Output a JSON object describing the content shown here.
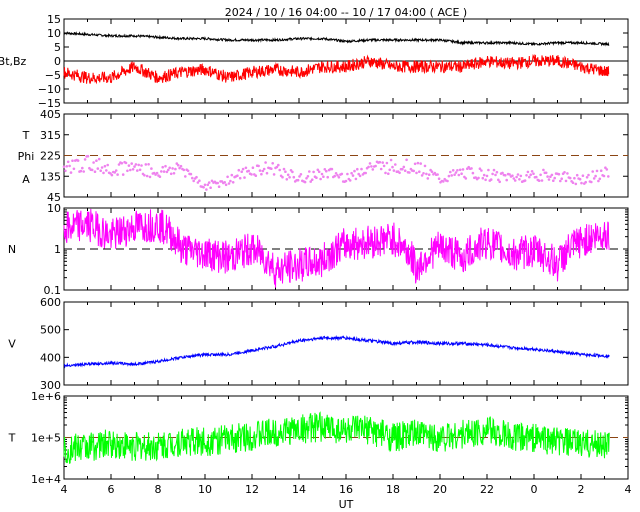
{
  "title": "2024 / 10 / 16   04:00 -- 10 / 17   04:00 ( ACE )",
  "x_axis": {
    "label": "UT",
    "ticks": [
      "4",
      "6",
      "8",
      "10",
      "12",
      "14",
      "16",
      "18",
      "20",
      "22",
      "0",
      "2",
      "4"
    ]
  },
  "chart_data": [
    {
      "type": "line",
      "panel": "magnetic-field",
      "ylabel": "Bt,Bz",
      "yticks": [
        "15",
        "10",
        "5",
        "0",
        "−5",
        "−10",
        "−15"
      ],
      "ylim": [
        -15,
        15
      ],
      "reference_line": 0,
      "x": [
        4,
        5,
        6,
        7,
        8,
        9,
        10,
        11,
        12,
        13,
        14,
        15,
        16,
        17,
        18,
        19,
        20,
        21,
        22,
        23,
        24,
        25,
        26,
        27.2
      ],
      "series": [
        {
          "name": "Bt",
          "color": "#000000",
          "values": [
            10,
            9.5,
            9,
            9,
            8.5,
            8,
            8,
            7.5,
            7.5,
            7.5,
            8,
            8,
            7,
            7.5,
            7.5,
            7.5,
            7.5,
            6.5,
            6.5,
            6.5,
            6,
            6.5,
            6.5,
            6
          ]
        },
        {
          "name": "Bz",
          "color": "#ff0000",
          "values": [
            -4,
            -6,
            -6,
            -2,
            -6,
            -4,
            -3,
            -6,
            -4,
            -3,
            -4,
            -2,
            -2,
            0,
            -2,
            -2,
            -2,
            -2,
            0,
            -1,
            0,
            0,
            -2,
            -4
          ]
        }
      ]
    },
    {
      "type": "scatter",
      "panel": "field-angle",
      "ylabel_top": "T",
      "ylabel_mid": "Phi",
      "ylabel_bottom": "A",
      "yticks": [
        "405",
        "315",
        "225",
        "135",
        "45"
      ],
      "ylim": [
        45,
        405
      ],
      "reference_line": 225,
      "x": [
        4,
        5,
        6,
        7,
        8,
        9,
        10,
        11,
        12,
        13,
        14,
        15,
        16,
        17,
        18,
        19,
        20,
        21,
        22,
        23,
        24,
        25,
        26,
        27.2
      ],
      "series": [
        {
          "name": "Phi",
          "color": "#ee82ee",
          "values": [
            175,
            190,
            170,
            175,
            150,
            175,
            90,
            120,
            160,
            170,
            120,
            150,
            130,
            175,
            175,
            180,
            120,
            150,
            140,
            130,
            140,
            135,
            120,
            150
          ]
        }
      ]
    },
    {
      "type": "line",
      "panel": "density",
      "ylabel": "N",
      "yticks": [
        "10",
        "1",
        "0.1"
      ],
      "yscale": "log",
      "ylim": [
        0.1,
        10
      ],
      "reference_line": 1,
      "x": [
        4,
        5,
        6,
        7,
        8,
        9,
        10,
        11,
        12,
        13,
        14,
        15,
        16,
        17,
        18,
        19,
        20,
        21,
        22,
        23,
        24,
        25,
        26,
        27.2
      ],
      "series": [
        {
          "name": "N",
          "color": "#ff00ff",
          "values": [
            3,
            4,
            2,
            3.5,
            4,
            1,
            0.8,
            0.6,
            1,
            0.3,
            0.4,
            0.5,
            1.3,
            1.5,
            1.8,
            0.3,
            1.1,
            0.6,
            1.5,
            0.7,
            0.9,
            0.4,
            1.5,
            2.5
          ]
        }
      ]
    },
    {
      "type": "line",
      "panel": "speed",
      "ylabel": "V",
      "yticks": [
        "600",
        "500",
        "400",
        "300"
      ],
      "ylim": [
        300,
        600
      ],
      "x": [
        4,
        5,
        6,
        7,
        8,
        9,
        10,
        11,
        12,
        13,
        14,
        15,
        16,
        17,
        18,
        19,
        20,
        21,
        22,
        23,
        24,
        25,
        26,
        27.2
      ],
      "series": [
        {
          "name": "V",
          "color": "#0000ff",
          "values": [
            370,
            375,
            380,
            375,
            385,
            400,
            410,
            410,
            425,
            440,
            460,
            470,
            470,
            460,
            450,
            455,
            450,
            450,
            445,
            435,
            430,
            420,
            410,
            405
          ]
        }
      ]
    },
    {
      "type": "line",
      "panel": "temperature",
      "ylabel": "T",
      "yticks": [
        "1e+6",
        "1e+5",
        "1e+4"
      ],
      "yscale": "log",
      "ylim": [
        10000,
        1000000
      ],
      "reference_line": 100000,
      "x": [
        4,
        5,
        6,
        7,
        8,
        9,
        10,
        11,
        12,
        13,
        14,
        15,
        16,
        17,
        18,
        19,
        20,
        21,
        22,
        23,
        24,
        25,
        26,
        27.2
      ],
      "series": [
        {
          "name": "T",
          "color": "#00ff00",
          "values": [
            50000,
            60000,
            70000,
            60000,
            60000,
            80000,
            80000,
            90000,
            110000,
            130000,
            160000,
            180000,
            150000,
            150000,
            100000,
            120000,
            100000,
            120000,
            150000,
            100000,
            100000,
            80000,
            70000,
            70000
          ]
        }
      ]
    }
  ]
}
